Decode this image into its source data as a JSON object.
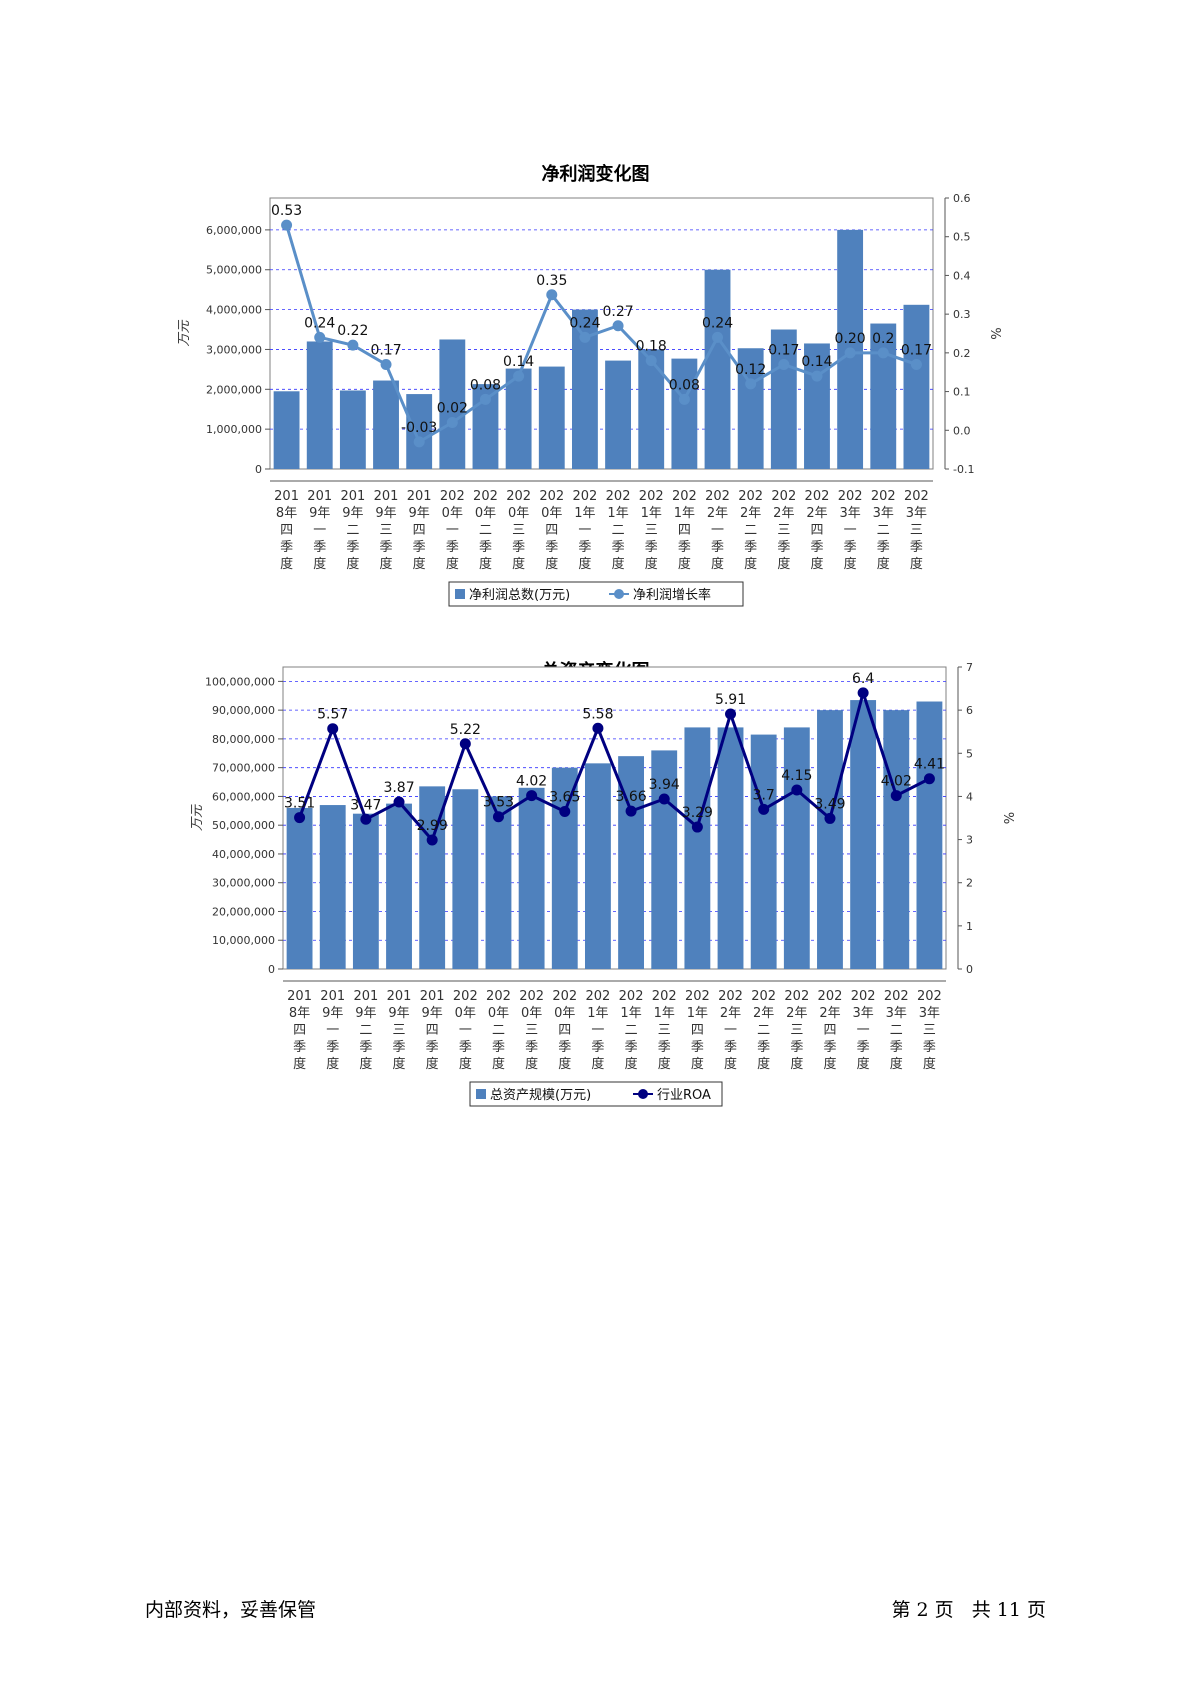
{
  "chart_data": [
    {
      "type": "bar+line",
      "title": "净利润变化图",
      "ylabel": "万元",
      "y2label": "%",
      "ylim": [
        0,
        6800000
      ],
      "y2lim": [
        -0.1,
        0.6
      ],
      "yticks": [
        0,
        1000000,
        2000000,
        3000000,
        4000000,
        5000000,
        6000000
      ],
      "ytick_labels": [
        "0",
        "1,000,000",
        "2,000,000",
        "3,000,000",
        "4,000,000",
        "5,000,000",
        "6,000,000"
      ],
      "y2ticks": [
        -0.1,
        0.0,
        0.1,
        0.2,
        0.3,
        0.4,
        0.5,
        0.6
      ],
      "y2tick_labels": [
        "-0.1",
        "0.0",
        "0.1",
        "0.2",
        "0.3",
        "0.4",
        "0.5",
        "0.6"
      ],
      "grid": true,
      "legend_position": "bottom-center",
      "categories": [
        [
          "201",
          "8年",
          "四",
          "季",
          "度"
        ],
        [
          "201",
          "9年",
          "一",
          "季",
          "度"
        ],
        [
          "201",
          "9年",
          "二",
          "季",
          "度"
        ],
        [
          "201",
          "9年",
          "三",
          "季",
          "度"
        ],
        [
          "201",
          "9年",
          "四",
          "季",
          "度"
        ],
        [
          "202",
          "0年",
          "一",
          "季",
          "度"
        ],
        [
          "202",
          "0年",
          "二",
          "季",
          "度"
        ],
        [
          "202",
          "0年",
          "三",
          "季",
          "度"
        ],
        [
          "202",
          "0年",
          "四",
          "季",
          "度"
        ],
        [
          "202",
          "1年",
          "一",
          "季",
          "度"
        ],
        [
          "202",
          "1年",
          "二",
          "季",
          "度"
        ],
        [
          "202",
          "1年",
          "三",
          "季",
          "度"
        ],
        [
          "202",
          "1年",
          "四",
          "季",
          "度"
        ],
        [
          "202",
          "2年",
          "一",
          "季",
          "度"
        ],
        [
          "202",
          "2年",
          "二",
          "季",
          "度"
        ],
        [
          "202",
          "2年",
          "三",
          "季",
          "度"
        ],
        [
          "202",
          "2年",
          "四",
          "季",
          "度"
        ],
        [
          "202",
          "3年",
          "一",
          "季",
          "度"
        ],
        [
          "202",
          "3年",
          "二",
          "季",
          "度"
        ],
        [
          "202",
          "3年",
          "三",
          "季",
          "度"
        ]
      ],
      "series": [
        {
          "name": "净利润总数(万元)",
          "type": "bar",
          "axis": "left",
          "color": "#4f81bd",
          "values": [
            1950000,
            3200000,
            1970000,
            2220000,
            1880000,
            3250000,
            2130000,
            2520000,
            2570000,
            4000000,
            2720000,
            3000000,
            2770000,
            5000000,
            3030000,
            3500000,
            3150000,
            6000000,
            3650000,
            4120000
          ]
        },
        {
          "name": "净利润增长率",
          "type": "line",
          "axis": "right",
          "color": "#5a8fc8",
          "marker": "circle",
          "values": [
            0.53,
            0.24,
            0.22,
            0.17,
            -0.03,
            0.02,
            0.08,
            0.14,
            0.35,
            0.24,
            0.27,
            0.18,
            0.08,
            0.24,
            0.12,
            0.17,
            0.14,
            0.2,
            0.2,
            0.17
          ],
          "labels": [
            "0.53",
            "0.24",
            "0.22",
            "0.17",
            "-0.03",
            "0.02",
            "0.08",
            "0.14",
            "0.35",
            "0.24",
            "0.27",
            "0.18",
            "0.08",
            "0.24",
            "0.12",
            "0.17",
            "0.14",
            "0.20",
            "0.2",
            "0.17"
          ]
        }
      ]
    },
    {
      "type": "bar+line",
      "title": "总资产变化图",
      "ylabel": "万元",
      "y2label": "%",
      "ylim": [
        0,
        105000000
      ],
      "y2lim": [
        0,
        7
      ],
      "yticks": [
        0,
        10000000,
        20000000,
        30000000,
        40000000,
        50000000,
        60000000,
        70000000,
        80000000,
        90000000,
        100000000
      ],
      "ytick_labels": [
        "0",
        "10,000,000",
        "20,000,000",
        "30,000,000",
        "40,000,000",
        "50,000,000",
        "60,000,000",
        "70,000,000",
        "80,000,000",
        "90,000,000",
        "100,000,000"
      ],
      "y2ticks": [
        0,
        1,
        2,
        3,
        4,
        5,
        6,
        7
      ],
      "y2tick_labels": [
        "0",
        "1",
        "2",
        "3",
        "4",
        "5",
        "6",
        "7"
      ],
      "grid": true,
      "legend_position": "bottom-center",
      "categories": [
        [
          "201",
          "8年",
          "四",
          "季",
          "度"
        ],
        [
          "201",
          "9年",
          "一",
          "季",
          "度"
        ],
        [
          "201",
          "9年",
          "二",
          "季",
          "度"
        ],
        [
          "201",
          "9年",
          "三",
          "季",
          "度"
        ],
        [
          "201",
          "9年",
          "四",
          "季",
          "度"
        ],
        [
          "202",
          "0年",
          "一",
          "季",
          "度"
        ],
        [
          "202",
          "0年",
          "二",
          "季",
          "度"
        ],
        [
          "202",
          "0年",
          "三",
          "季",
          "度"
        ],
        [
          "202",
          "0年",
          "四",
          "季",
          "度"
        ],
        [
          "202",
          "1年",
          "一",
          "季",
          "度"
        ],
        [
          "202",
          "1年",
          "二",
          "季",
          "度"
        ],
        [
          "202",
          "1年",
          "三",
          "季",
          "度"
        ],
        [
          "202",
          "1年",
          "四",
          "季",
          "度"
        ],
        [
          "202",
          "2年",
          "一",
          "季",
          "度"
        ],
        [
          "202",
          "2年",
          "二",
          "季",
          "度"
        ],
        [
          "202",
          "2年",
          "三",
          "季",
          "度"
        ],
        [
          "202",
          "2年",
          "四",
          "季",
          "度"
        ],
        [
          "202",
          "3年",
          "一",
          "季",
          "度"
        ],
        [
          "202",
          "3年",
          "二",
          "季",
          "度"
        ],
        [
          "202",
          "3年",
          "三",
          "季",
          "度"
        ]
      ],
      "series": [
        {
          "name": "总资产规模(万元)",
          "type": "bar",
          "axis": "left",
          "color": "#4f81bd",
          "values": [
            56000000,
            57000000,
            54000000,
            57500000,
            63500000,
            62500000,
            60000000,
            63000000,
            70000000,
            71500000,
            74000000,
            76000000,
            84000000,
            84000000,
            81500000,
            84000000,
            90000000,
            93500000,
            90000000,
            93000000
          ]
        },
        {
          "name": "行业ROA",
          "type": "line",
          "axis": "right",
          "color": "#000080",
          "marker": "circle",
          "values": [
            3.51,
            5.57,
            3.47,
            3.87,
            2.99,
            5.22,
            3.53,
            4.02,
            3.65,
            5.58,
            3.66,
            3.94,
            3.29,
            5.91,
            3.7,
            4.15,
            3.49,
            6.4,
            4.02,
            4.41
          ],
          "labels": [
            "3.51",
            "5.57",
            "3.47",
            "3.87",
            "2.99",
            "5.22",
            "3.53",
            "4.02",
            "3.65",
            "5.58",
            "3.66",
            "3.94",
            "3.29",
            "5.91",
            "3.7",
            "4.15",
            "3.49",
            "6.4",
            "4.02",
            "4.41"
          ]
        }
      ]
    }
  ],
  "footer": {
    "left": "内部资料，妥善保管",
    "right": "第 2 页   共 11 页"
  }
}
